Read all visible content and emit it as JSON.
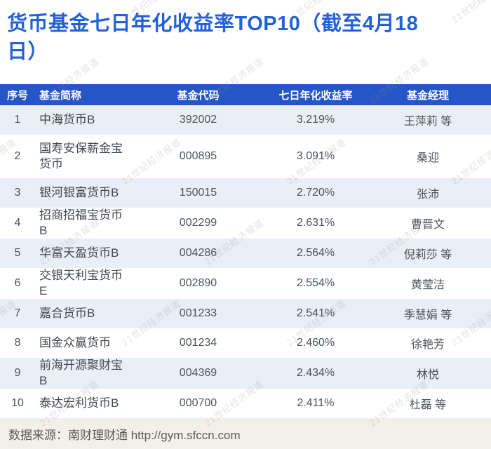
{
  "title": {
    "line1": "货币基金七日年化收益率TOP10（截至4月18",
    "line2": "日）"
  },
  "watermark": {
    "text": "21世纪经济报道"
  },
  "chart_data": {
    "type": "table",
    "title": "货币基金七日年化收益率TOP10（截至4月18日）",
    "columns": [
      "序号",
      "基金简称",
      "基金代码",
      "七日年化收益率",
      "基金经理"
    ],
    "rows": [
      [
        "1",
        "中海货币B",
        "392002",
        "3.219%",
        "王萍莉 等"
      ],
      [
        "2",
        "国寿安保薪金宝货币",
        "000895",
        "3.091%",
        "桑迎"
      ],
      [
        "3",
        "银河银富货币B",
        "150015",
        "2.720%",
        "张沛"
      ],
      [
        "4",
        "招商招福宝货币B",
        "002299",
        "2.631%",
        "曹晋文"
      ],
      [
        "5",
        "华富天盈货币B",
        "004286",
        "2.564%",
        "倪莉莎 等"
      ],
      [
        "6",
        "交银天利宝货币E",
        "002890",
        "2.554%",
        "黄莹洁"
      ],
      [
        "7",
        "嘉合货币B",
        "001233",
        "2.541%",
        "季慧娟 等"
      ],
      [
        "8",
        "国金众赢货币",
        "001234",
        "2.460%",
        "徐艳芳"
      ],
      [
        "9",
        "前海开源聚财宝B",
        "004369",
        "2.434%",
        "林悦"
      ],
      [
        "10",
        "泰达宏利货币B",
        "000700",
        "2.411%",
        "杜磊 等"
      ]
    ],
    "source": "数据来源：南财理财通 http://gym.sfccn.com",
    "layout": {
      "striped": true,
      "stripe_rows": "odd",
      "header_style": "solid-blue"
    }
  },
  "colors": {
    "title_blue": "#2362d6",
    "header_bg": "#2655c7",
    "header_text": "#ffffff",
    "row_alt_bg": "#e9eef9",
    "footer_bg": "#f2f0ea"
  }
}
